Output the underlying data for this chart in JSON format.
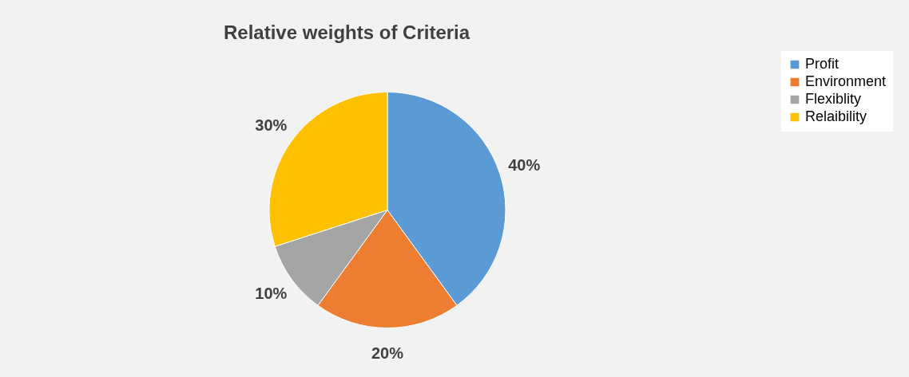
{
  "chart_data": {
    "type": "pie",
    "title": "Relative weights of Criteria",
    "categories": [
      "Profit",
      "Environment",
      "Flexiblity",
      "Relaibility"
    ],
    "values": [
      40,
      20,
      10,
      30
    ],
    "colors": [
      "#5b9bd5",
      "#ed7d31",
      "#a5a5a5",
      "#ffc000"
    ],
    "value_labels": [
      "40%",
      "20%",
      "10%",
      "30%"
    ],
    "legend": "right"
  }
}
